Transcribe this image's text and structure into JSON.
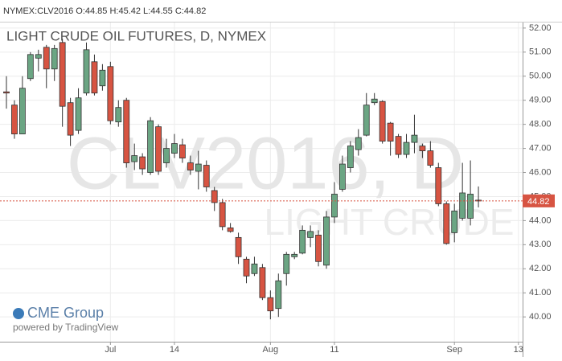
{
  "header": "NYMEX:CLV2016 O:44.85 H:45.42 L:44.55 C:44.82",
  "chart_data": {
    "type": "candlestick",
    "title": "LIGHT CRUDE OIL FUTURES, D, NYMEX",
    "watermark": "CLV2016, D",
    "watermark_subtitle": "LIGHT CRUDE",
    "logo": "CME Group",
    "credit": "powered by TradingView",
    "categories": [
      null,
      null,
      null,
      null,
      null,
      null,
      null,
      null,
      null,
      null,
      null,
      null,
      null,
      "Jul",
      null,
      null,
      null,
      null,
      null,
      null,
      null,
      "14",
      null,
      null,
      null,
      null,
      null,
      null,
      null,
      null,
      null,
      null,
      null,
      "Aug",
      null,
      null,
      null,
      null,
      null,
      null,
      null,
      "11",
      null,
      null,
      null,
      null,
      null,
      null,
      null,
      null,
      null,
      null,
      null,
      null,
      null,
      null,
      "Sep",
      null,
      null,
      null,
      null,
      null,
      null,
      null,
      "13"
    ],
    "open": [
      49.35,
      48.8,
      47.6,
      49.9,
      50.75,
      51.2,
      50.3,
      51.4,
      48.9,
      47.75,
      49.3,
      50.6,
      49.6,
      50.4,
      48.1,
      49.0,
      46.45,
      46.65,
      46.0,
      47.9,
      46.4,
      46.8,
      47.15,
      46.4,
      46.05,
      46.3,
      45.25,
      44.75,
      43.7,
      43.3,
      42.4,
      41.8,
      42.05,
      40.8,
      40.35,
      41.8,
      42.5,
      42.65,
      43.3,
      43.4,
      42.15,
      44.15,
      45.3,
      46.2,
      46.95,
      47.55,
      48.9,
      48.95,
      48.05,
      47.5,
      46.75,
      47.25,
      47.1,
      46.9,
      46.2,
      44.7,
      43.5,
      44.1,
      44.1,
      44.85,
      null,
      null,
      null,
      null,
      null
    ],
    "high": [
      50.0,
      49.0,
      50.0,
      51.0,
      51.1,
      51.3,
      51.3,
      51.55,
      49.1,
      49.5,
      51.4,
      50.9,
      50.5,
      50.6,
      49.0,
      49.1,
      47.2,
      46.8,
      48.3,
      48.0,
      47.4,
      47.6,
      47.4,
      46.7,
      46.9,
      46.5,
      45.4,
      44.9,
      43.9,
      43.5,
      42.5,
      42.5,
      42.2,
      41.1,
      41.8,
      42.7,
      42.7,
      43.8,
      43.8,
      43.6,
      44.4,
      45.6,
      46.7,
      47.3,
      47.8,
      49.3,
      49.3,
      49.0,
      48.1,
      47.6,
      47.6,
      48.4,
      47.2,
      47.3,
      46.4,
      44.8,
      44.7,
      46.4,
      46.5,
      45.42,
      null,
      null,
      null,
      null,
      null
    ],
    "low": [
      48.65,
      47.4,
      47.6,
      49.8,
      50.2,
      49.5,
      49.8,
      47.9,
      47.1,
      47.6,
      49.2,
      49.2,
      49.4,
      48.0,
      47.9,
      46.2,
      46.1,
      45.9,
      45.9,
      45.9,
      46.2,
      46.6,
      46.4,
      45.9,
      45.3,
      45.2,
      44.4,
      43.6,
      43.5,
      42.2,
      41.4,
      41.7,
      40.7,
      39.9,
      40.0,
      41.3,
      42.4,
      42.6,
      42.9,
      42.1,
      42.0,
      43.9,
      45.2,
      46.0,
      46.7,
      47.5,
      48.8,
      47.2,
      46.7,
      46.6,
      46.6,
      46.8,
      46.6,
      46.2,
      44.6,
      43.0,
      43.1,
      44.0,
      43.8,
      44.55,
      null,
      null,
      null,
      null,
      null
    ],
    "close": [
      49.3,
      47.6,
      49.5,
      50.9,
      50.9,
      50.3,
      51.15,
      48.75,
      47.55,
      49.1,
      51.1,
      49.3,
      50.25,
      48.15,
      48.7,
      46.4,
      46.7,
      46.15,
      48.15,
      46.05,
      47.0,
      47.2,
      46.6,
      46.1,
      46.35,
      45.4,
      44.75,
      43.75,
      43.55,
      42.5,
      41.7,
      42.2,
      40.8,
      40.25,
      41.5,
      42.6,
      42.6,
      43.6,
      43.55,
      42.3,
      44.15,
      45.1,
      46.35,
      47.1,
      47.45,
      48.8,
      49.05,
      47.3,
      47.3,
      46.75,
      47.25,
      47.55,
      46.9,
      46.3,
      44.7,
      43.05,
      44.4,
      45.15,
      45.1,
      44.82,
      null,
      null,
      null,
      null,
      null
    ],
    "up_color": "#6ba583",
    "down_color": "#d75442",
    "last_price": 44.82,
    "ylim": [
      38.97,
      52.23
    ],
    "yticks": [
      {
        "value": 40,
        "label": "40.00"
      },
      {
        "value": 41,
        "label": "41.00"
      },
      {
        "value": 42,
        "label": "42.00"
      },
      {
        "value": 43,
        "label": "43.00"
      },
      {
        "value": 44,
        "label": "44.00"
      },
      {
        "value": 45,
        "label": "45.00"
      },
      {
        "value": 46,
        "label": "46.00"
      },
      {
        "value": 47,
        "label": "47.00"
      },
      {
        "value": 48,
        "label": "48.00"
      },
      {
        "value": 49,
        "label": "49.00"
      },
      {
        "value": 50,
        "label": "50.00"
      },
      {
        "value": 51,
        "label": "51.00"
      },
      {
        "value": 52,
        "label": "52.00"
      }
    ],
    "grid": true
  }
}
